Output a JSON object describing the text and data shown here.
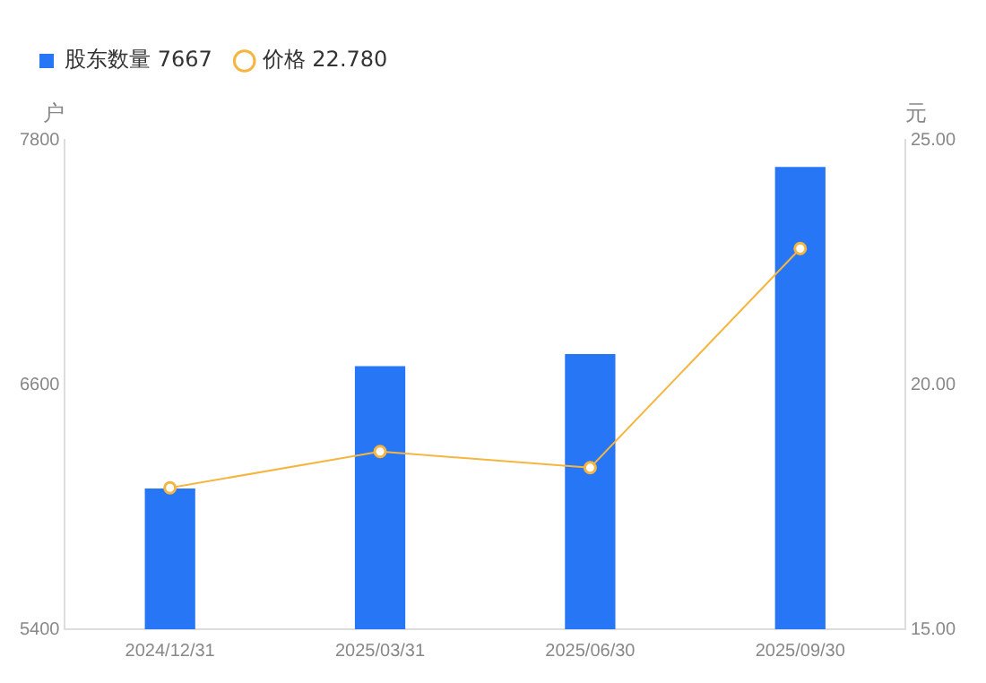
{
  "chart_data": {
    "type": "bar",
    "categories": [
      "2024/12/31",
      "2025/03/31",
      "2025/06/30",
      "2025/09/30"
    ],
    "ylabel": "户",
    "y2label": "元",
    "series": [
      {
        "name": "股东数量 7667",
        "color": "#2676f5",
        "values": [
          6090,
          6690,
          6750,
          7667
        ]
      },
      {
        "name": "价格 22.780",
        "type": "line",
        "axis": "y2",
        "color": "#f6b540",
        "values": [
          17.89,
          18.63,
          18.3,
          22.78
        ]
      }
    ],
    "ylim": [
      5400,
      7800
    ],
    "yticks": [
      5400,
      6600,
      7800
    ],
    "y2lim": [
      15,
      25
    ],
    "y2ticks": [
      {
        "value": 15,
        "label": "15.00"
      },
      {
        "value": 20,
        "label": "20.00"
      },
      {
        "value": 25,
        "label": "25.00"
      }
    ],
    "legend": "top left",
    "marker": "circle",
    "grid": false
  }
}
